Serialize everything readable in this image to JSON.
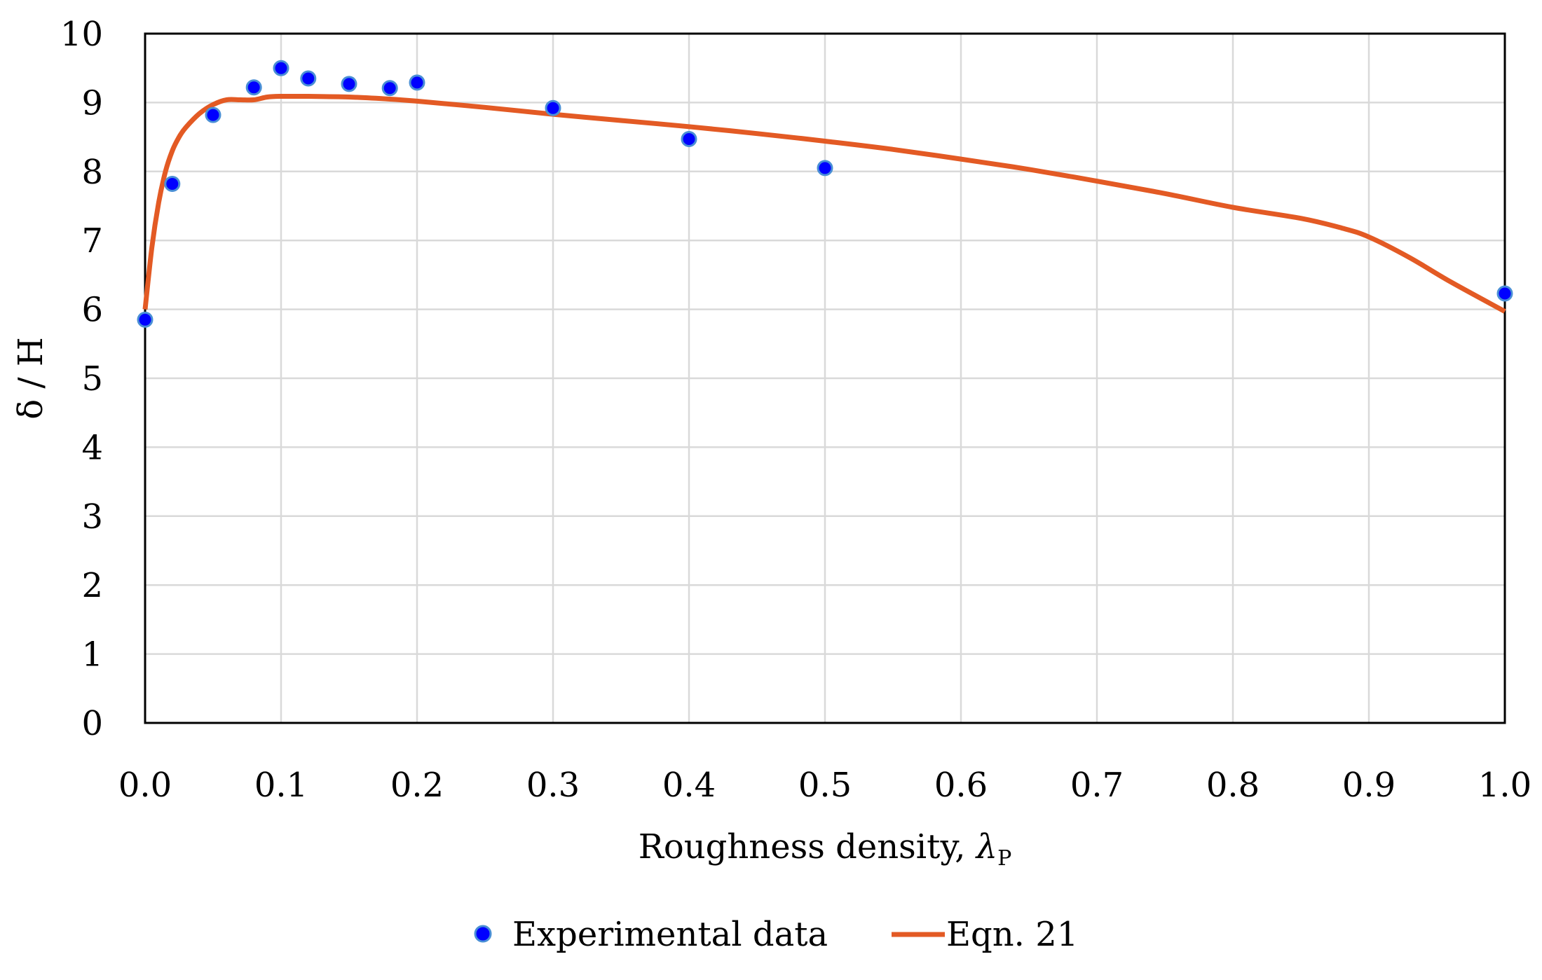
{
  "chart_data": {
    "type": "scatter",
    "title": "",
    "xlabel": "Roughness density, ",
    "xlabel_symbol": "λ",
    "xlabel_subscript": "P",
    "ylabel": "δ / H",
    "xlim": [
      0,
      1
    ],
    "ylim": [
      0,
      10
    ],
    "x_ticks": [
      0,
      0.1,
      0.2,
      0.3,
      0.4,
      0.5,
      0.6,
      0.7,
      0.8,
      0.9,
      1.0
    ],
    "y_ticks": [
      0,
      1,
      2,
      3,
      4,
      5,
      6,
      7,
      8,
      9,
      10
    ],
    "x_tick_labels": [
      "0.0",
      "0.1",
      "0.2",
      "0.3",
      "0.4",
      "0.5",
      "0.6",
      "0.7",
      "0.8",
      "0.9",
      "1.0"
    ],
    "y_tick_labels": [
      "0",
      "1",
      "2",
      "3",
      "4",
      "5",
      "6",
      "7",
      "8",
      "9",
      "10"
    ],
    "grid": true,
    "legend_position": "bottom",
    "series": [
      {
        "name": "Experimental data",
        "kind": "markers",
        "color": "#0000ff",
        "edge_color": "#4a8fd6",
        "x": [
          0.0,
          0.02,
          0.05,
          0.08,
          0.1,
          0.12,
          0.15,
          0.18,
          0.2,
          0.3,
          0.4,
          0.5,
          1.0
        ],
        "y": [
          5.85,
          7.82,
          8.82,
          9.22,
          9.5,
          9.35,
          9.27,
          9.21,
          9.29,
          8.92,
          8.47,
          8.05,
          6.23
        ]
      },
      {
        "name": "Eqn. 21",
        "kind": "line",
        "color": "#e35a24",
        "x": [
          0.0,
          0.005,
          0.01,
          0.015,
          0.02,
          0.025,
          0.03,
          0.04,
          0.05,
          0.06,
          0.07,
          0.08,
          0.09,
          0.1,
          0.12,
          0.15,
          0.18,
          0.2,
          0.25,
          0.3,
          0.35,
          0.4,
          0.45,
          0.5,
          0.55,
          0.6,
          0.65,
          0.7,
          0.75,
          0.8,
          0.85,
          0.88,
          0.9,
          0.93,
          0.96,
          1.0
        ],
        "y": [
          6.0,
          6.9,
          7.55,
          8.0,
          8.3,
          8.5,
          8.64,
          8.84,
          8.97,
          9.04,
          9.04,
          9.04,
          9.08,
          9.09,
          9.09,
          9.08,
          9.05,
          9.02,
          8.93,
          8.83,
          8.74,
          8.65,
          8.55,
          8.44,
          8.32,
          8.18,
          8.03,
          7.86,
          7.68,
          7.48,
          7.32,
          7.18,
          7.05,
          6.75,
          6.4,
          5.97
        ]
      }
    ]
  }
}
